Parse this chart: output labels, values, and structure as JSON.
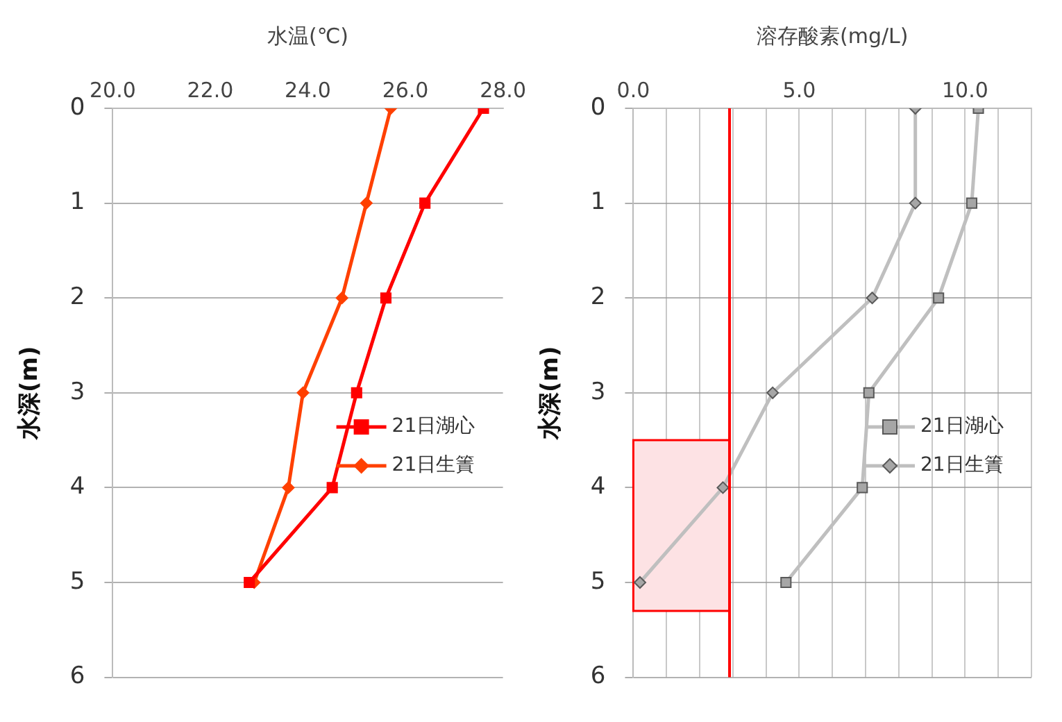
{
  "chart_data": [
    {
      "type": "line",
      "xlabel": "水温(℃)",
      "ylabel": "水深(m)",
      "xlim": [
        20,
        28
      ],
      "xticks": [
        {
          "value": 20,
          "label": "20.0"
        },
        {
          "value": 22,
          "label": "22.0"
        },
        {
          "value": 24,
          "label": "24.0"
        },
        {
          "value": 26,
          "label": "26.0"
        },
        {
          "value": 28,
          "label": "28.0"
        }
      ],
      "ylim": [
        6,
        0
      ],
      "yticks": [
        0,
        1,
        2,
        3,
        4,
        5,
        6
      ],
      "grid": "y",
      "legend": "right",
      "series": [
        {
          "name": "21日湖心",
          "color": "#ff0000",
          "marker": "square",
          "x": [
            27.6,
            26.4,
            25.6,
            25.0,
            24.5,
            22.8
          ],
          "values": [
            0,
            1,
            2,
            3,
            4,
            5
          ]
        },
        {
          "name": "21日生簀",
          "color": "#ff4000",
          "marker": "diamond",
          "x": [
            25.7,
            25.2,
            24.7,
            23.9,
            23.6,
            22.9
          ],
          "values": [
            0,
            1,
            2,
            3,
            4,
            5
          ]
        }
      ]
    },
    {
      "type": "line",
      "xlabel": "溶存酸素(mg/L)",
      "ylabel": "水深(m)",
      "xlim": [
        0,
        12
      ],
      "xticks": [
        {
          "value": 0,
          "label": "0.0"
        },
        {
          "value": 1,
          "label": null
        },
        {
          "value": 2,
          "label": null
        },
        {
          "value": 3,
          "label": null
        },
        {
          "value": 4,
          "label": null
        },
        {
          "value": 5,
          "label": "5.0"
        },
        {
          "value": 6,
          "label": null
        },
        {
          "value": 7,
          "label": null
        },
        {
          "value": 8,
          "label": null
        },
        {
          "value": 9,
          "label": null
        },
        {
          "value": 10,
          "label": "10.0"
        },
        {
          "value": 11,
          "label": null
        },
        {
          "value": 12,
          "label": null
        }
      ],
      "ylim": [
        6,
        0
      ],
      "yticks": [
        0,
        1,
        2,
        3,
        4,
        5,
        6
      ],
      "grid": true,
      "legend": "right",
      "ref_lines": [
        {
          "axis": "x",
          "value": 2.9,
          "color": "#ff0000"
        }
      ],
      "bands": [
        {
          "axis": "y",
          "from": 3.5,
          "to": 5.3,
          "color": "#fde2e4"
        }
      ],
      "series": [
        {
          "name": "21日湖心",
          "color": "#bfbfbf",
          "marker": "square",
          "x": [
            10.4,
            10.2,
            9.2,
            7.1,
            6.9,
            4.6
          ],
          "values": [
            0,
            1,
            2,
            3,
            4,
            5
          ]
        },
        {
          "name": "21日生簀",
          "color": "#bfbfbf",
          "marker": "diamond",
          "x": [
            8.5,
            8.5,
            7.2,
            4.2,
            2.7,
            0.2
          ],
          "values": [
            0,
            1,
            2,
            3,
            4,
            5
          ]
        }
      ]
    }
  ]
}
